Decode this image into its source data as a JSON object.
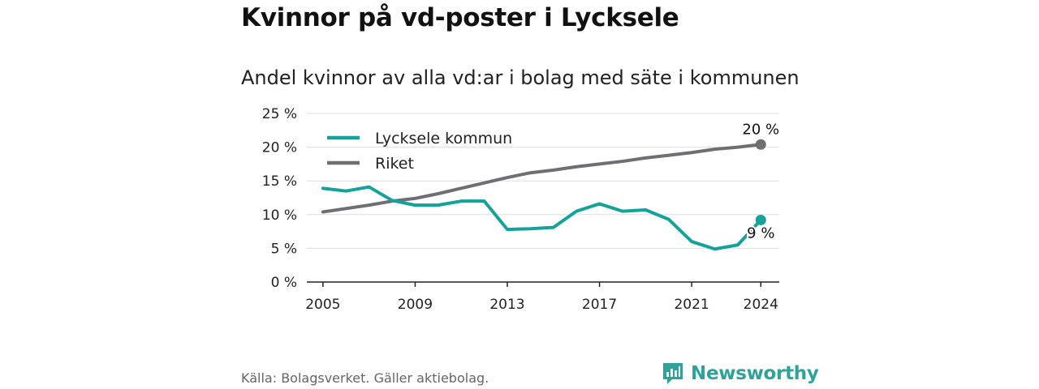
{
  "title": "Kvinnor på vd-poster i Lycksele",
  "subtitle": "Andel kvinnor av alla vd:ar i bolag med säte i kommunen",
  "source": "Källa: Bolagsverket. Gäller aktiebolag.",
  "brand": "Newsworthy",
  "colors": {
    "lycksele": "#13a39a",
    "riket": "#6e6e73",
    "grid": "#dddddd",
    "axis": "#222222"
  },
  "chart_data": {
    "type": "line",
    "ylim": [
      0,
      25
    ],
    "yticks": [
      0,
      5,
      10,
      15,
      20,
      25
    ],
    "ytick_labels": [
      "0 %",
      "5 %",
      "10 %",
      "15 %",
      "20 %",
      "25 %"
    ],
    "xticks": [
      2005,
      2009,
      2013,
      2017,
      2021,
      2024
    ],
    "xtick_labels": [
      "2005",
      "2009",
      "2013",
      "2017",
      "2021",
      "2024"
    ],
    "x": [
      2005,
      2006,
      2007,
      2008,
      2009,
      2010,
      2011,
      2012,
      2013,
      2014,
      2015,
      2016,
      2017,
      2018,
      2019,
      2020,
      2021,
      2022,
      2023,
      2024
    ],
    "series": [
      {
        "name": "Lycksele kommun",
        "values": [
          13.9,
          13.5,
          14.1,
          12.1,
          11.4,
          11.4,
          12.0,
          12.0,
          7.8,
          7.9,
          8.1,
          10.5,
          11.6,
          10.5,
          10.7,
          9.3,
          6.0,
          4.9,
          5.5,
          9.2
        ]
      },
      {
        "name": "Riket",
        "values": [
          10.4,
          10.9,
          11.4,
          12.0,
          12.4,
          13.1,
          13.9,
          14.7,
          15.5,
          16.2,
          16.6,
          17.1,
          17.5,
          17.9,
          18.4,
          18.8,
          19.2,
          19.7,
          20.0,
          20.4
        ]
      }
    ],
    "end_labels": [
      "9 %",
      "20 %"
    ],
    "legend_placement": "top-left",
    "grid": true
  }
}
